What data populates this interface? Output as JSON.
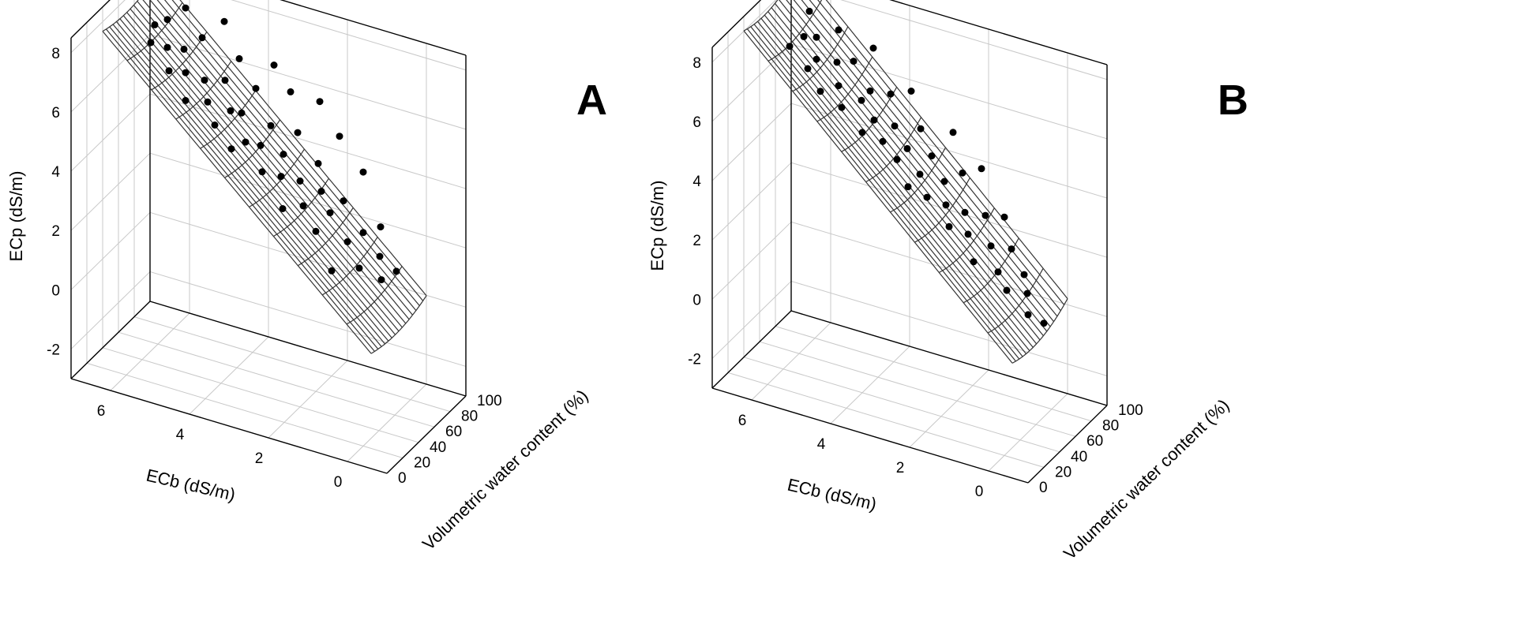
{
  "figure": {
    "panels": [
      "A",
      "B"
    ],
    "colors": {
      "frame": "#000000",
      "grid": "#c8c8c8",
      "mesh": "#333333",
      "points": "#000000",
      "background": "#ffffff"
    }
  },
  "chart_data": [
    {
      "type": "scatter",
      "subtype": "3d-surface-with-points",
      "panel_label": "A",
      "xlabel": "ECb (dS/m)",
      "ylabel": "Volumetric water content (%)",
      "zlabel": "ECp (dS/m)",
      "x_ticks": [
        "0",
        "2",
        "4",
        "6"
      ],
      "y_ticks": [
        "0",
        "20",
        "40",
        "60",
        "80",
        "100"
      ],
      "z_ticks": [
        "-2",
        "0",
        "2",
        "4",
        "6",
        "8"
      ],
      "xlim": [
        -1,
        7
      ],
      "ylim": [
        0,
        100
      ],
      "zlim": [
        -3,
        8.5
      ],
      "grid": true,
      "surface_model": {
        "form": "z = a*x + b*(y - c)^2",
        "a": 1.2,
        "b": 0.00018,
        "c": 60
      },
      "surface_grid": {
        "x_steps": 11,
        "y_steps": 16
      },
      "points": [
        [
          0.0,
          62,
          1.8
        ],
        [
          0.3,
          58,
          1.5
        ],
        [
          0.5,
          66,
          2.0
        ],
        [
          0.6,
          72,
          2.8
        ],
        [
          0.9,
          60,
          1.6
        ],
        [
          1.0,
          70,
          2.5
        ],
        [
          1.2,
          80,
          4.2
        ],
        [
          1.3,
          65,
          2.2
        ],
        [
          1.5,
          55,
          1.4
        ],
        [
          1.6,
          75,
          3.2
        ],
        [
          1.8,
          68,
          2.9
        ],
        [
          1.9,
          85,
          5.0
        ],
        [
          2.0,
          60,
          2.4
        ],
        [
          2.1,
          72,
          3.4
        ],
        [
          2.3,
          78,
          4.1
        ],
        [
          2.4,
          64,
          3.0
        ],
        [
          2.5,
          90,
          5.8
        ],
        [
          2.6,
          70,
          3.6
        ],
        [
          2.8,
          58,
          2.9
        ],
        [
          2.9,
          82,
          4.8
        ],
        [
          3.0,
          66,
          3.7
        ],
        [
          3.1,
          74,
          4.2
        ],
        [
          3.2,
          88,
          5.9
        ],
        [
          3.4,
          62,
          3.8
        ],
        [
          3.5,
          78,
          4.9
        ],
        [
          3.6,
          70,
          4.4
        ],
        [
          3.7,
          92,
          6.5
        ],
        [
          3.9,
          66,
          4.5
        ],
        [
          4.0,
          84,
          5.8
        ],
        [
          4.1,
          58,
          4.4
        ],
        [
          4.2,
          76,
          5.1
        ],
        [
          4.4,
          72,
          5.2
        ],
        [
          4.5,
          88,
          6.5
        ],
        [
          4.6,
          62,
          4.9
        ],
        [
          4.7,
          80,
          5.9
        ],
        [
          4.9,
          68,
          5.4
        ],
        [
          5.0,
          94,
          7.4
        ],
        [
          5.1,
          74,
          5.9
        ],
        [
          5.3,
          60,
          5.5
        ],
        [
          5.4,
          86,
          6.9
        ],
        [
          5.5,
          70,
          6.1
        ],
        [
          5.7,
          78,
          6.6
        ],
        [
          5.8,
          64,
          6.2
        ],
        [
          5.9,
          90,
          7.6
        ],
        [
          6.0,
          72,
          6.7
        ],
        [
          6.2,
          82,
          7.3
        ],
        [
          6.3,
          66,
          6.9
        ],
        [
          6.4,
          76,
          7.2
        ]
      ]
    },
    {
      "type": "scatter",
      "subtype": "3d-surface-with-points",
      "panel_label": "B",
      "xlabel": "ECb (dS/m)",
      "ylabel": "Volumetric water content (%)",
      "zlabel": "ECp (dS/m)",
      "x_ticks": [
        "0",
        "2",
        "4",
        "6"
      ],
      "y_ticks": [
        "0",
        "20",
        "40",
        "60",
        "80",
        "100"
      ],
      "z_ticks": [
        "-2",
        "0",
        "2",
        "4",
        "6",
        "8"
      ],
      "xlim": [
        -1,
        7
      ],
      "ylim": [
        0,
        100
      ],
      "zlim": [
        -3,
        8.5
      ],
      "grid": true,
      "surface_model": {
        "form": "z = a*x + b*(y - c)^2",
        "a": 1.25,
        "b": 0.00025,
        "c": 55
      },
      "surface_grid": {
        "x_steps": 11,
        "y_steps": 16
      },
      "points": [
        [
          -0.2,
          60,
          0.5
        ],
        [
          0.1,
          55,
          0.8
        ],
        [
          0.3,
          64,
          1.2
        ],
        [
          0.5,
          70,
          1.6
        ],
        [
          0.7,
          58,
          1.3
        ],
        [
          0.9,
          74,
          2.2
        ],
        [
          1.0,
          62,
          1.7
        ],
        [
          1.2,
          80,
          3.0
        ],
        [
          1.3,
          68,
          2.3
        ],
        [
          1.5,
          56,
          2.0
        ],
        [
          1.6,
          76,
          3.0
        ],
        [
          1.8,
          64,
          2.6
        ],
        [
          1.9,
          86,
          4.2
        ],
        [
          2.0,
          70,
          3.1
        ],
        [
          2.2,
          60,
          2.8
        ],
        [
          2.3,
          82,
          4.0
        ],
        [
          2.4,
          66,
          3.3
        ],
        [
          2.6,
          74,
          3.8
        ],
        [
          2.7,
          90,
          5.0
        ],
        [
          2.8,
          62,
          3.5
        ],
        [
          3.0,
          78,
          4.4
        ],
        [
          3.1,
          68,
          4.0
        ],
        [
          3.2,
          58,
          3.8
        ],
        [
          3.4,
          84,
          5.0
        ],
        [
          3.5,
          72,
          4.6
        ],
        [
          3.6,
          64,
          4.4
        ],
        [
          3.8,
          92,
          5.9
        ],
        [
          3.9,
          76,
          5.1
        ],
        [
          4.0,
          66,
          4.8
        ],
        [
          4.2,
          86,
          5.8
        ],
        [
          4.3,
          70,
          5.3
        ],
        [
          4.4,
          60,
          5.1
        ],
        [
          4.6,
          80,
          5.9
        ],
        [
          4.7,
          74,
          5.7
        ],
        [
          4.8,
          94,
          6.9
        ],
        [
          5.0,
          64,
          5.6
        ],
        [
          5.1,
          84,
          6.6
        ],
        [
          5.2,
          70,
          6.1
        ],
        [
          5.4,
          78,
          6.6
        ],
        [
          5.5,
          62,
          6.0
        ],
        [
          5.6,
          90,
          7.3
        ],
        [
          5.8,
          72,
          6.7
        ],
        [
          5.9,
          66,
          6.5
        ],
        [
          6.0,
          82,
          7.1
        ],
        [
          6.2,
          76,
          7.2
        ],
        [
          6.3,
          88,
          7.7
        ],
        [
          6.4,
          68,
          7.0
        ]
      ]
    }
  ]
}
